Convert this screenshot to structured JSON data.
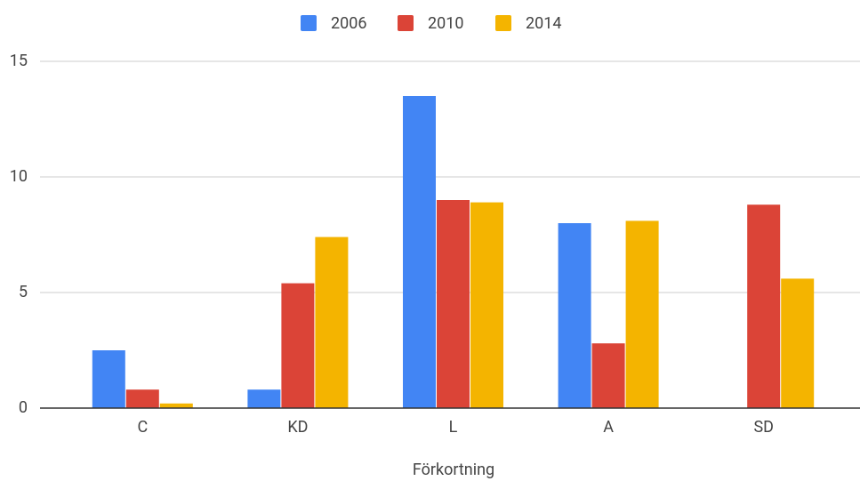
{
  "chart_data": {
    "type": "bar",
    "x_label": "Förkortning",
    "categories": [
      "C",
      "KD",
      "L",
      "A",
      "SD"
    ],
    "series": [
      {
        "name": "2006",
        "color": "#4285f4",
        "values": [
          2.5,
          0.8,
          13.5,
          8.0,
          null
        ]
      },
      {
        "name": "2010",
        "color": "#db4437",
        "values": [
          0.8,
          5.4,
          9.0,
          2.8,
          8.8
        ]
      },
      {
        "name": "2014",
        "color": "#f4b400",
        "values": [
          0.2,
          7.4,
          8.9,
          8.1,
          5.6
        ]
      }
    ],
    "ylim": [
      0,
      15
    ],
    "yticks": [
      0,
      5,
      10,
      15
    ],
    "grid": true,
    "legend": "top"
  }
}
